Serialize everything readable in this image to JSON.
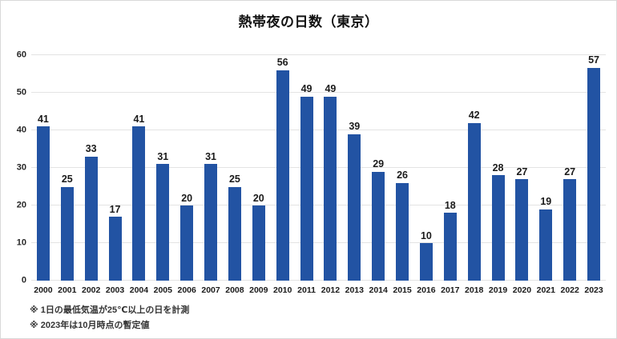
{
  "window": {
    "background": "#ffffff",
    "border_color": "#d9d9d9"
  },
  "chart_data": {
    "type": "bar",
    "title": "熱帯夜の日数（東京）",
    "categories": [
      "2000",
      "2001",
      "2002",
      "2003",
      "2004",
      "2005",
      "2006",
      "2007",
      "2008",
      "2009",
      "2010",
      "2011",
      "2012",
      "2013",
      "2014",
      "2015",
      "2016",
      "2017",
      "2018",
      "2019",
      "2020",
      "2021",
      "2022",
      "2023"
    ],
    "values": [
      41,
      25,
      33,
      17,
      41,
      31,
      20,
      31,
      25,
      20,
      56,
      49,
      49,
      39,
      29,
      26,
      10,
      18,
      42,
      28,
      27,
      19,
      27,
      57
    ],
    "xlabel": "",
    "ylabel": "",
    "ylim": [
      0,
      60
    ],
    "yticks": [
      0,
      10,
      20,
      30,
      40,
      50,
      60
    ],
    "grid": true,
    "legend": "none",
    "data_labels": true,
    "bar_color": "#2253A3",
    "gridline_color": "#e3e3e3",
    "text_color": "#1a1a1a",
    "notes": [
      "※ 1日の最低気温が25℃以上の日を計測",
      "※ 2023年は10月時点の暫定値"
    ]
  }
}
